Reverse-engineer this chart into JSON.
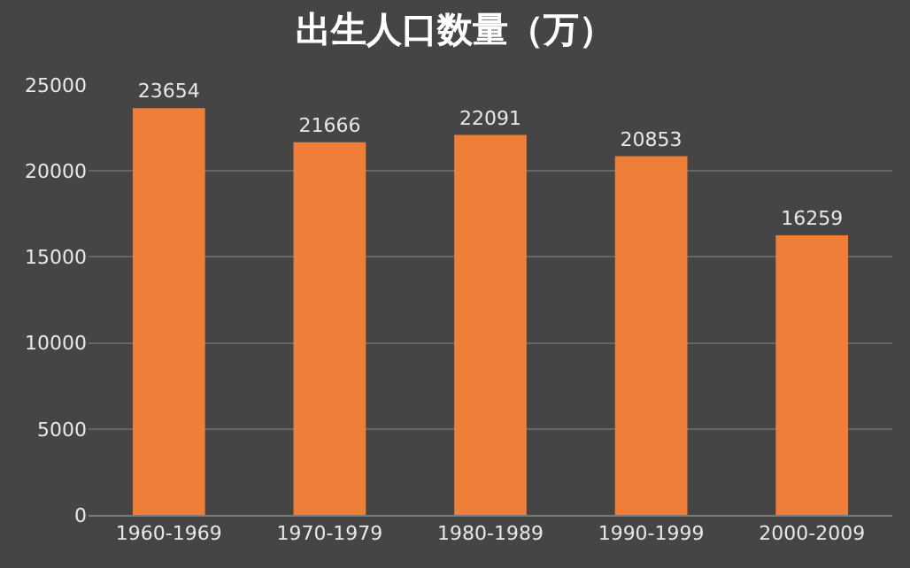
{
  "chart_data": {
    "type": "bar",
    "title": "出生人口数量（万）",
    "categories": [
      "1960-1969",
      "1970-1979",
      "1980-1989",
      "1990-1999",
      "2000-2009"
    ],
    "values": [
      23654,
      21666,
      22091,
      20853,
      16259
    ],
    "color": "#ef7f38",
    "ylim": [
      0,
      25000
    ],
    "yticks": [
      0,
      5000,
      10000,
      15000,
      20000,
      25000
    ],
    "grid": "y",
    "data_labels": true,
    "legend": false
  }
}
